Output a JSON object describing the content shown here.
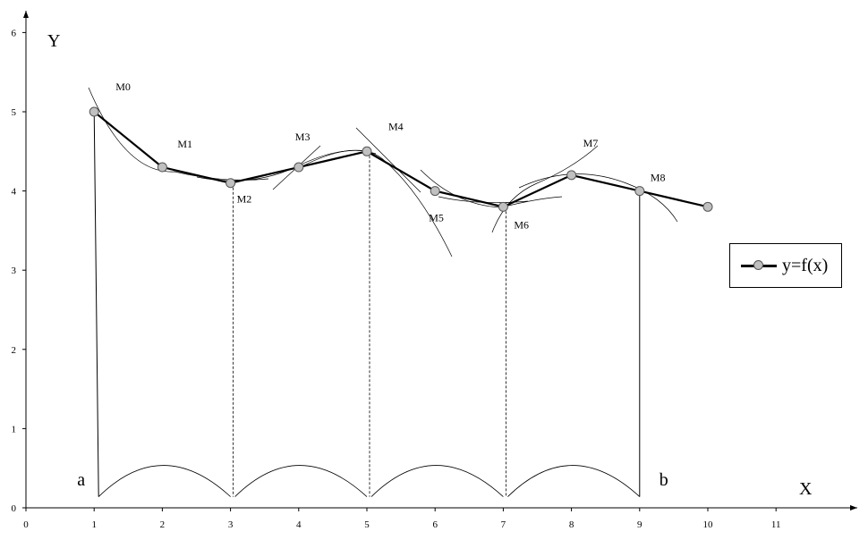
{
  "chart_data": {
    "type": "line",
    "x": [
      1,
      2,
      3,
      4,
      5,
      6,
      7,
      8,
      9,
      10
    ],
    "series": [
      {
        "name": "y=f(x)",
        "values": [
          5.0,
          4.3,
          4.1,
          4.3,
          4.5,
          4.0,
          3.8,
          4.2,
          4.0,
          3.8
        ]
      }
    ],
    "point_labels": [
      {
        "text": "M0",
        "x": 1
      },
      {
        "text": "M1",
        "x": 2
      },
      {
        "text": "M2",
        "x": 3
      },
      {
        "text": "M3",
        "x": 4
      },
      {
        "text": "M4",
        "x": 5
      },
      {
        "text": "M5",
        "x": 6
      },
      {
        "text": "M6",
        "x": 7
      },
      {
        "text": "M7",
        "x": 8
      },
      {
        "text": "M8",
        "x": 9
      }
    ],
    "endpoints": [
      {
        "text": "a",
        "x": 1
      },
      {
        "text": "b",
        "x": 9
      }
    ],
    "xlabel": "X",
    "ylabel": "Y",
    "xlim": [
      0,
      11
    ],
    "ylim": [
      0,
      6
    ],
    "xticks": [
      "0",
      "1",
      "2",
      "3",
      "4",
      "5",
      "6",
      "7",
      "8",
      "9",
      "10",
      "11"
    ],
    "yticks": [
      "0",
      "1",
      "2",
      "3",
      "4",
      "5",
      "6"
    ],
    "grid": false,
    "legend_position": "right"
  },
  "legend": {
    "label": "y=f(x)"
  },
  "colors": {
    "line": "#000000",
    "marker_fill": "#c0c0c0",
    "marker_stroke": "#555555"
  }
}
